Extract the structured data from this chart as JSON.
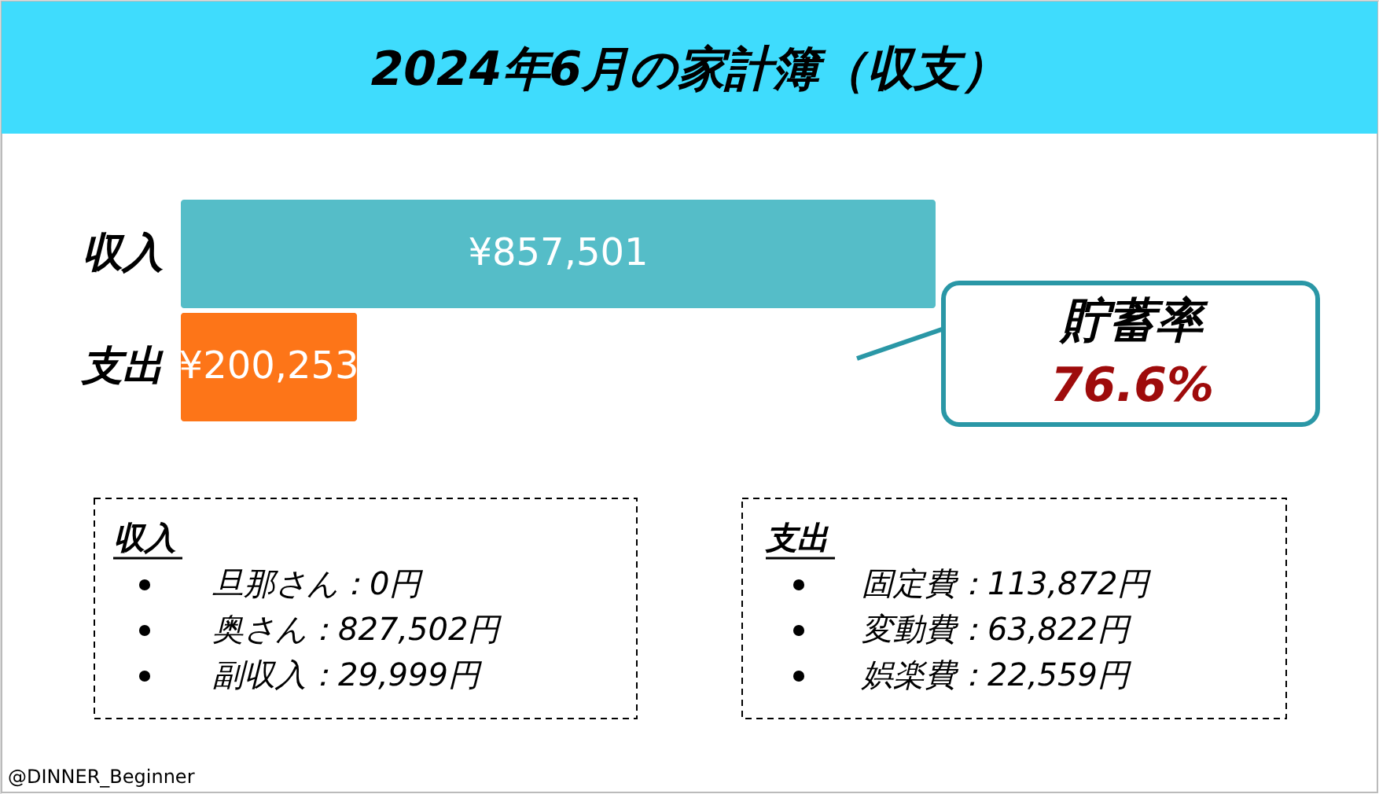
{
  "chart_data": {
    "type": "bar",
    "orientation": "horizontal",
    "title": "2024年6月の家計簿（収支）",
    "categories": [
      "収入",
      "支出"
    ],
    "values": [
      857501,
      200253
    ],
    "colors": [
      "#55bdc8",
      "#fd7518"
    ],
    "value_labels": [
      "¥857,501",
      "¥200,253"
    ],
    "annotations": [
      "貯蓄率",
      "76.6%",
      "収入",
      "旦那さん：0円",
      "奥さん：827,502円",
      "副収入：29,999円",
      "支出",
      "固定費：113,872円",
      "変動費：63,822円",
      "娯楽費：22,559円",
      "@DINNER_Beginner"
    ]
  }
}
